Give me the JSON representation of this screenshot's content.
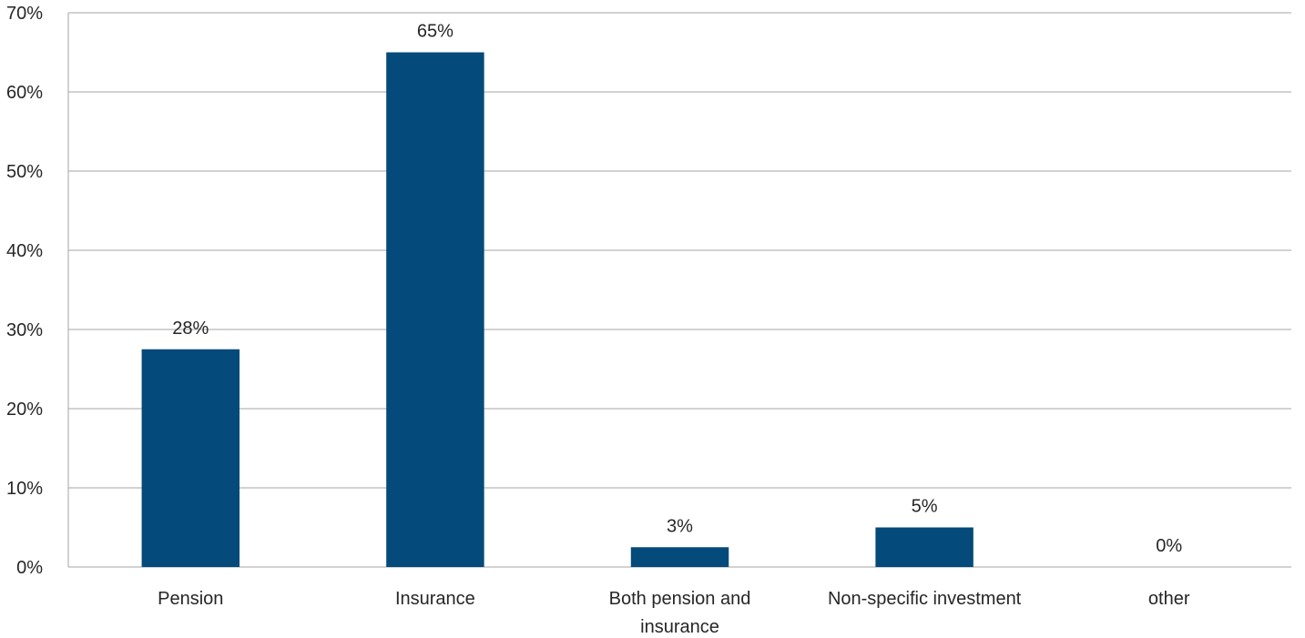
{
  "chart_data": {
    "type": "bar",
    "title": "",
    "xlabel": "",
    "ylabel": "",
    "categories": [
      [
        "Pension"
      ],
      [
        "Insurance"
      ],
      [
        "Both pension and",
        "insurance"
      ],
      [
        "Non-specific investment"
      ],
      [
        "other"
      ]
    ],
    "values": [
      27.5,
      65,
      2.5,
      5,
      0
    ],
    "data_labels": [
      "28%",
      "65%",
      "3%",
      "5%",
      "0%"
    ],
    "ylim": [
      0,
      70
    ],
    "yticks": [
      0,
      10,
      20,
      30,
      40,
      50,
      60,
      70
    ],
    "ytick_labels": [
      "0%",
      "10%",
      "20%",
      "30%",
      "40%",
      "50%",
      "60%",
      "70%"
    ],
    "grid": true,
    "legend": "none",
    "bar_color": "#044a7a",
    "grid_color": "#a6a6a6"
  }
}
